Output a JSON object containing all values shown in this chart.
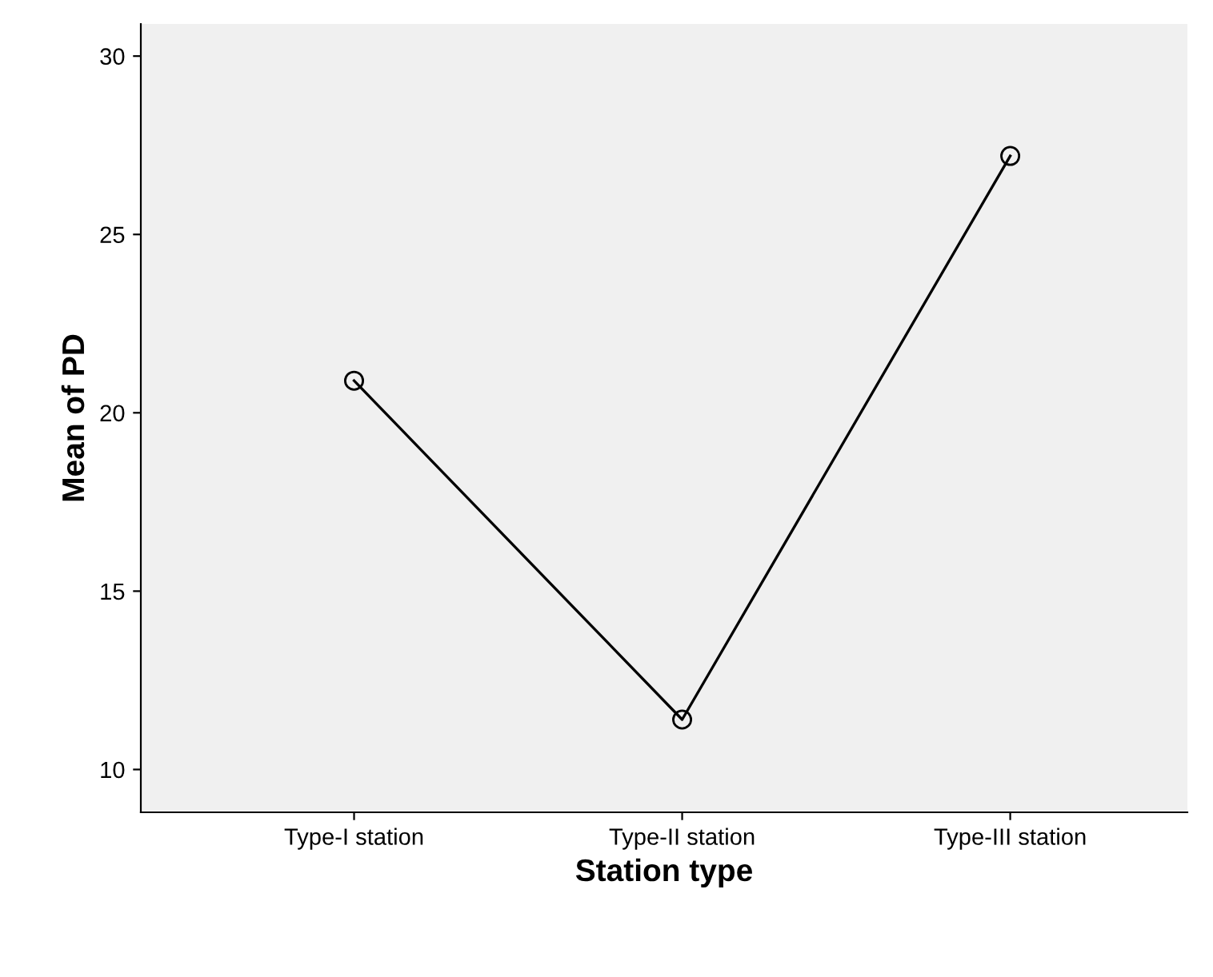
{
  "chart_data": {
    "type": "line",
    "xlabel": "Station type",
    "ylabel": "Mean of PD",
    "categories": [
      "Type-I station",
      "Type-II station",
      "Type-III station"
    ],
    "series": [
      {
        "color": "#000000",
        "values": [
          20.9,
          11.4,
          27.2
        ]
      }
    ],
    "ylim": [
      8.8,
      30.9
    ],
    "yticks": [
      10,
      15,
      20,
      25,
      30
    ],
    "marker": "circle",
    "line_style": "solid",
    "grid": false,
    "legend": false
  }
}
